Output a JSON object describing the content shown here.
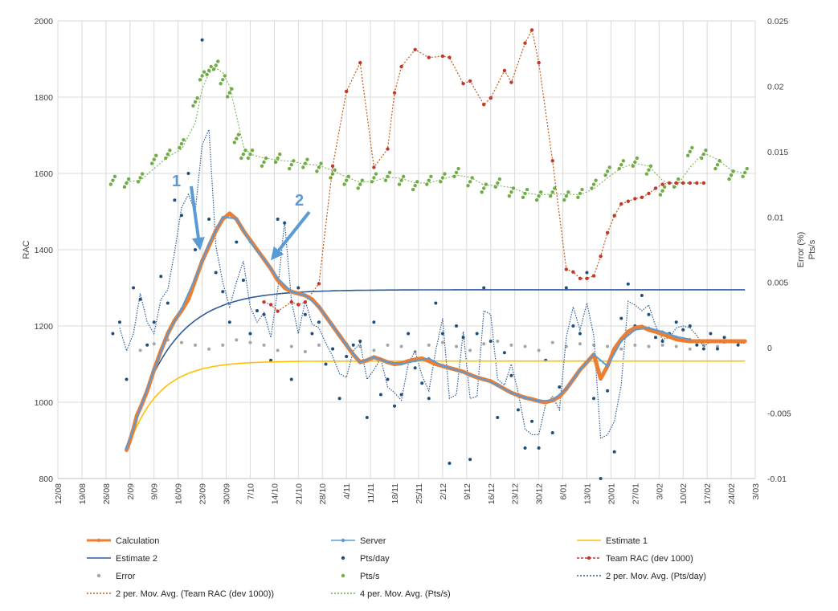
{
  "chart_data": {
    "type": "line",
    "title": "",
    "xlabel": "",
    "ylabel": "RAC",
    "y2label": "Error (%)",
    "y2label_unit": "Pts/s",
    "ylim": [
      800,
      2000
    ],
    "y2lim": [
      -0.01,
      0.025
    ],
    "xlim_days": [
      0,
      203
    ],
    "y_ticks": [
      "800",
      "1000",
      "1200",
      "1400",
      "1600",
      "1800",
      "2000"
    ],
    "y2_ticks": [
      "-0.01",
      "-0.005",
      "0",
      "0.005",
      "0.01",
      "0.015",
      "0.02",
      "0.025"
    ],
    "x_ticks": [
      "12/08",
      "19/08",
      "26/08",
      "2/09",
      "9/09",
      "16/09",
      "23/09",
      "30/09",
      "7/10",
      "14/10",
      "21/10",
      "28/10",
      "4/11",
      "11/11",
      "18/11",
      "25/11",
      "2/12",
      "9/12",
      "16/12",
      "23/12",
      "30/12",
      "6/01",
      "13/01",
      "20/01",
      "27/01",
      "3/02",
      "10/02",
      "17/02",
      "24/02",
      "3/03"
    ],
    "annotations": [
      {
        "label": "1"
      },
      {
        "label": "2"
      }
    ],
    "legend": [
      {
        "name": "Calculation",
        "color": "#ed7d31",
        "style": "line-marker"
      },
      {
        "name": "Server",
        "color": "#5b9bd5",
        "style": "line-marker"
      },
      {
        "name": "Estimate 1",
        "color": "#ffc000",
        "style": "line"
      },
      {
        "name": "Estimate 2",
        "color": "#2e5c9a",
        "style": "line"
      },
      {
        "name": "Pts/day",
        "color": "#1f4e79",
        "style": "marker"
      },
      {
        "name": "Team RAC (dev 1000)",
        "color": "#c0392b",
        "style": "dashed-marker"
      },
      {
        "name": "Error",
        "color": "#a5a5a5",
        "style": "marker"
      },
      {
        "name": "Pts/s",
        "color": "#70ad47",
        "style": "marker"
      },
      {
        "name": "2 per. Mov. Avg. (Pts/day)",
        "color": "#2e5c9a",
        "style": "dotted"
      },
      {
        "name": "2 per. Mov. Avg. (Team RAC (dev 1000))",
        "color": "#c55a11",
        "style": "dotted"
      },
      {
        "name": "4 per. Mov. Avg. (Pts/s)",
        "color": "#70ad47",
        "style": "dotted"
      }
    ],
    "series": [
      {
        "name": "Calculation",
        "axis": "left",
        "x": [
          20,
          21,
          22,
          23,
          24,
          26,
          28,
          30,
          32,
          34,
          36,
          38,
          40,
          42,
          44,
          46,
          48,
          50,
          52,
          54,
          56,
          58,
          60,
          62,
          64,
          66,
          68,
          70,
          72,
          74,
          76,
          78,
          80,
          82,
          84,
          86,
          88,
          90,
          92,
          94,
          96,
          98,
          100,
          102,
          104,
          106,
          108,
          110,
          112,
          114,
          116,
          118,
          120,
          122,
          124,
          126,
          128,
          130,
          132,
          134,
          136,
          138,
          140,
          142,
          144,
          146,
          148,
          150,
          152,
          154,
          156,
          158,
          160,
          162,
          164,
          166,
          168,
          170,
          172,
          174,
          176,
          178,
          180,
          182,
          184,
          186,
          188,
          190,
          192,
          194,
          196,
          198,
          200
        ],
        "values": [
          875,
          900,
          930,
          965,
          985,
          1030,
          1085,
          1135,
          1180,
          1215,
          1240,
          1270,
          1320,
          1370,
          1410,
          1450,
          1480,
          1495,
          1480,
          1450,
          1425,
          1400,
          1375,
          1350,
          1320,
          1300,
          1290,
          1285,
          1280,
          1270,
          1250,
          1225,
          1200,
          1175,
          1150,
          1125,
          1105,
          1110,
          1118,
          1112,
          1105,
          1100,
          1102,
          1108,
          1112,
          1115,
          1108,
          1100,
          1095,
          1090,
          1085,
          1080,
          1072,
          1065,
          1060,
          1055,
          1045,
          1035,
          1025,
          1018,
          1012,
          1008,
          1003,
          1000,
          1005,
          1015,
          1035,
          1060,
          1085,
          1105,
          1125,
          1062,
          1095,
          1140,
          1165,
          1185,
          1195,
          1198,
          1190,
          1185,
          1178,
          1172,
          1165,
          1162,
          1160,
          1160,
          1160,
          1160,
          1160,
          1160,
          1160,
          1160,
          1160
        ]
      },
      {
        "name": "Server",
        "axis": "left",
        "x": [
          20,
          24,
          28,
          32,
          36,
          40,
          44,
          48,
          52,
          56,
          60,
          64,
          68,
          72,
          76,
          80,
          84,
          88,
          92,
          96,
          100,
          104,
          108,
          112,
          116,
          120,
          124,
          128,
          132,
          136,
          140,
          144,
          148,
          152,
          156,
          160,
          164,
          168,
          172,
          176,
          180,
          184
        ],
        "values": [
          880,
          985,
          1085,
          1180,
          1245,
          1325,
          1415,
          1485,
          1482,
          1420,
          1375,
          1325,
          1290,
          1280,
          1250,
          1200,
          1150,
          1105,
          1118,
          1105,
          1100,
          1108,
          1115,
          1095,
          1085,
          1072,
          1060,
          1045,
          1025,
          1012,
          1003,
          1005,
          1035,
          1085,
          1125,
          1095,
          1160,
          1190,
          1195,
          1185,
          1172,
          1165
        ]
      },
      {
        "name": "Estimate 1",
        "axis": "left",
        "x": [
          20,
          200
        ],
        "values": [
          870,
          1108
        ]
      },
      {
        "name": "Estimate 2",
        "axis": "left",
        "x": [
          20,
          200
        ],
        "values": [
          870,
          1295
        ]
      },
      {
        "name": "Team RAC (dev 1000)",
        "axis": "right",
        "x": [
          60,
          62,
          64,
          68,
          70,
          72,
          76,
          80,
          84,
          88,
          92,
          96,
          98,
          100,
          104,
          108,
          112,
          114,
          118,
          120,
          124,
          126,
          130,
          132,
          136,
          138,
          140,
          144,
          148,
          150,
          152,
          154,
          156,
          158,
          160,
          162,
          164,
          166,
          168,
          170,
          172,
          174,
          176,
          178,
          180,
          182,
          184,
          186,
          188
        ],
        "values": [
          0.0035,
          0.0033,
          0.0028,
          0.0035,
          0.0033,
          0.0035,
          0.0049,
          0.0139,
          0.0196,
          0.0218,
          0.0138,
          0.0152,
          0.0195,
          0.0215,
          0.0228,
          0.0222,
          0.0223,
          0.0222,
          0.0202,
          0.0204,
          0.0186,
          0.0191,
          0.0212,
          0.0203,
          0.0233,
          0.0243,
          0.0218,
          0.0143,
          0.006,
          0.0058,
          0.0053,
          0.0053,
          0.0055,
          0.007,
          0.0088,
          0.0101,
          0.011,
          0.0112,
          0.0114,
          0.0115,
          0.0118,
          0.0122,
          0.0125,
          0.0126,
          0.0126,
          0.0126,
          0.0126,
          0.0126,
          0.0126
        ]
      },
      {
        "name": "Pts/s",
        "axis": "right",
        "x": [
          16,
          20,
          24,
          28,
          32,
          36,
          40,
          42,
          44,
          46,
          48,
          50,
          52,
          54,
          56,
          60,
          64,
          68,
          72,
          76,
          80,
          84,
          88,
          92,
          96,
          100,
          104,
          108,
          112,
          116,
          120,
          124,
          128,
          132,
          136,
          140,
          144,
          148,
          152,
          156,
          160,
          164,
          168,
          172,
          176,
          180,
          184,
          188,
          192,
          196,
          200
        ],
        "values": [
          0.0128,
          0.0126,
          0.013,
          0.0144,
          0.0148,
          0.0156,
          0.0188,
          0.0208,
          0.0212,
          0.0216,
          0.0205,
          0.0195,
          0.016,
          0.0148,
          0.0148,
          0.0142,
          0.0145,
          0.014,
          0.0141,
          0.0138,
          0.0133,
          0.0128,
          0.0125,
          0.013,
          0.0131,
          0.0128,
          0.0124,
          0.0128,
          0.013,
          0.0134,
          0.0127,
          0.0122,
          0.0126,
          0.0119,
          0.0118,
          0.0116,
          0.0119,
          0.0116,
          0.0118,
          0.0125,
          0.0135,
          0.014,
          0.0142,
          0.0136,
          0.012,
          0.0126,
          0.015,
          0.0148,
          0.014,
          0.0132,
          0.0134
        ]
      },
      {
        "name": "Pts/day",
        "axis": "left",
        "x": [
          16,
          18,
          20,
          22,
          24,
          26,
          28,
          30,
          32,
          34,
          36,
          38,
          40,
          42,
          44,
          46,
          48,
          50,
          52,
          54,
          56,
          58,
          60,
          62,
          64,
          66,
          68,
          70,
          72,
          74,
          76,
          78,
          80,
          82,
          84,
          86,
          88,
          90,
          92,
          94,
          96,
          98,
          100,
          102,
          104,
          106,
          108,
          110,
          112,
          114,
          116,
          118,
          120,
          122,
          124,
          126,
          128,
          130,
          132,
          134,
          136,
          138,
          140,
          142,
          144,
          146,
          148,
          150,
          152,
          154,
          156,
          158,
          160,
          162,
          164,
          166,
          168,
          170,
          172,
          174,
          176,
          178,
          180,
          182,
          184,
          186,
          188,
          190,
          192,
          194,
          196,
          198,
          200
        ],
        "values": [
          1180,
          1210,
          1060,
          1300,
          1270,
          1150,
          1210,
          1330,
          1260,
          1530,
          1490,
          1600,
          1400,
          1950,
          1480,
          1340,
          1290,
          1210,
          1420,
          1320,
          1180,
          1240,
          1230,
          1110,
          1480,
          1470,
          1060,
          1300,
          1230,
          1180,
          1210,
          1100,
          1140,
          1010,
          1120,
          1150,
          1160,
          960,
          1210,
          1020,
          1060,
          990,
          1020,
          1180,
          1090,
          1050,
          1010,
          1260,
          1180,
          840,
          1200,
          1170,
          850,
          1180,
          1300,
          1160,
          960,
          1130,
          1070,
          980,
          880,
          950,
          880,
          1110,
          920,
          1040,
          1300,
          1200,
          1180,
          1340,
          1010,
          800,
          1030,
          870,
          1220,
          1310,
          1200,
          1280,
          1230,
          1170,
          1160,
          1180,
          1210,
          1190,
          1200,
          1150,
          1140,
          1180,
          1140,
          1170,
          1160,
          1150,
          1160
        ]
      },
      {
        "name": "Error",
        "axis": "right",
        "x": [
          24,
          28,
          32,
          36,
          40,
          44,
          48,
          52,
          56,
          60,
          64,
          68,
          72,
          76,
          80,
          84,
          88,
          92,
          96,
          100,
          104,
          108,
          112,
          116,
          120,
          124,
          128,
          132,
          136,
          140,
          144,
          148,
          152,
          156,
          160,
          164,
          168,
          172,
          176,
          180,
          184,
          188,
          192
        ],
        "values": [
          -0.0002,
          0.0003,
          0.0006,
          0.0004,
          0.0002,
          -0.0001,
          0.0002,
          0.0006,
          0.0004,
          0.0002,
          -0.0002,
          0.0001,
          -0.0003,
          0.0002,
          -0.0001,
          0.0003,
          0.0001,
          -0.0002,
          0.0002,
          0.0001,
          -0.0003,
          0.0002,
          0.0004,
          0.0001,
          -0.0002,
          0.0003,
          0.0005,
          0.0002,
          0.0001,
          -0.0002,
          0.0004,
          0.0001,
          0.0003,
          0.0002,
          0.0001,
          -0.0001,
          0.0002,
          0.0001,
          0.0002,
          0.0001,
          -0.0001,
          0.0002,
          0.0001
        ]
      }
    ]
  }
}
